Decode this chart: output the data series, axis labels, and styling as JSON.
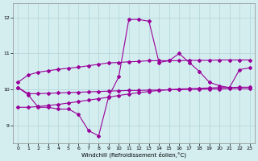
{
  "xlabel": "Windchill (Refroidissement éolien,°C)",
  "xlim": [
    -0.5,
    23.5
  ],
  "ylim": [
    8.5,
    12.4
  ],
  "yticks": [
    9,
    10,
    11,
    12
  ],
  "xticks": [
    0,
    1,
    2,
    3,
    4,
    5,
    6,
    7,
    8,
    9,
    10,
    11,
    12,
    13,
    14,
    15,
    16,
    17,
    18,
    19,
    20,
    21,
    22,
    23
  ],
  "bg_color": "#d4eef0",
  "grid_color": "#b0d4d8",
  "line_color": "#990099",
  "markersize": 2.0,
  "linewidth": 0.8,
  "s1_x": [
    0,
    1,
    2,
    3,
    4,
    5,
    6,
    7,
    8,
    9,
    10,
    11,
    12,
    13,
    14,
    15,
    16,
    17,
    18,
    19,
    20,
    21,
    22,
    23
  ],
  "s1_y": [
    10.2,
    10.4,
    10.48,
    10.52,
    10.56,
    10.59,
    10.62,
    10.66,
    10.7,
    10.74,
    10.75,
    10.77,
    10.78,
    10.8,
    10.8,
    10.8,
    10.8,
    10.81,
    10.81,
    10.81,
    10.82,
    10.82,
    10.82,
    10.82
  ],
  "s2_x": [
    0,
    1,
    2,
    3,
    4,
    5,
    6,
    7,
    8,
    9,
    10,
    11,
    12,
    13,
    14,
    15,
    16,
    17,
    18,
    19,
    20,
    21,
    22,
    23
  ],
  "s2_y": [
    10.05,
    9.85,
    9.5,
    9.5,
    9.45,
    9.45,
    9.3,
    8.85,
    8.7,
    9.8,
    10.35,
    11.95,
    11.95,
    11.9,
    10.75,
    10.8,
    11.0,
    10.75,
    10.5,
    10.2,
    10.1,
    10.05,
    10.55,
    10.6
  ],
  "s3_x": [
    0,
    1,
    2,
    3,
    4,
    5,
    6,
    7,
    8,
    9,
    10,
    11,
    12,
    13,
    14,
    15,
    16,
    17,
    18,
    19,
    20,
    21,
    22,
    23
  ],
  "s3_y": [
    9.5,
    9.5,
    9.52,
    9.55,
    9.58,
    9.62,
    9.66,
    9.7,
    9.74,
    9.78,
    9.83,
    9.87,
    9.91,
    9.94,
    9.97,
    9.99,
    10.01,
    10.02,
    10.03,
    10.04,
    10.05,
    10.05,
    10.06,
    10.06
  ],
  "s4_x": [
    0,
    1,
    2,
    3,
    4,
    5,
    6,
    7,
    8,
    9,
    10,
    11,
    12,
    13,
    14,
    15,
    16,
    17,
    18,
    19,
    20,
    21,
    22,
    23
  ],
  "s4_y": [
    10.05,
    9.88,
    9.88,
    9.89,
    9.9,
    9.91,
    9.92,
    9.93,
    9.94,
    9.95,
    9.96,
    9.97,
    9.97,
    9.98,
    9.98,
    9.99,
    9.99,
    10.0,
    10.0,
    10.01,
    10.01,
    10.02,
    10.02,
    10.02
  ]
}
